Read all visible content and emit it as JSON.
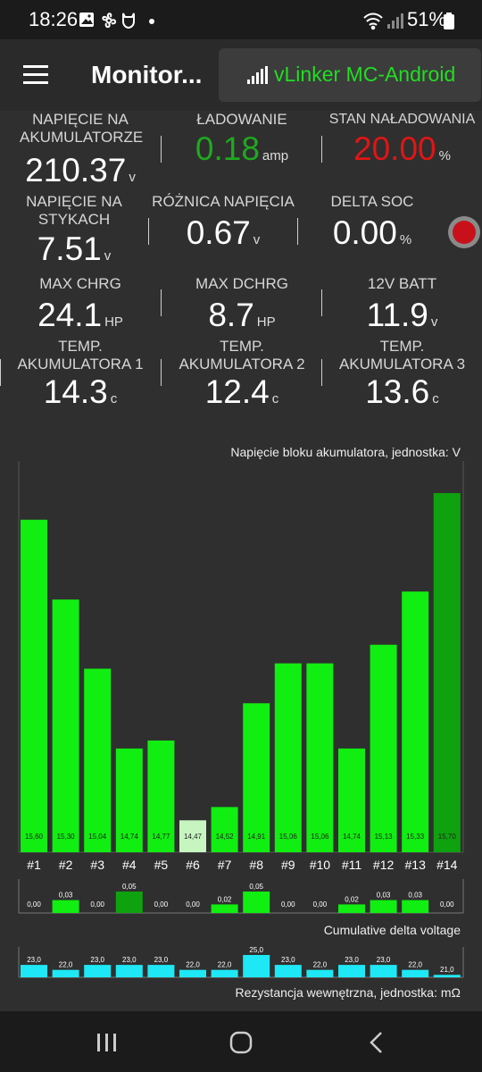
{
  "status_bar": {
    "time": "18:26",
    "battery": "51%",
    "icons": [
      "gallery-icon",
      "fan-icon",
      "mi-icon",
      "dot-icon",
      "wifi-icon",
      "signal-icon",
      "battery-icon"
    ]
  },
  "app_bar": {
    "title": "Monitor...",
    "device": "vLinker MC-Android",
    "accent": "#22dd22"
  },
  "metrics": [
    {
      "label": "NAPIĘCIE NA AKUMULATORZE",
      "value": "210.37",
      "unit": "v",
      "color": "#ffffff"
    },
    {
      "label": "ŁADOWANIE",
      "value": "0.18",
      "unit": "amp",
      "color": "#1fa81f"
    },
    {
      "label": "STAN NAŁADOWANIA",
      "value": "20.00",
      "unit": "%",
      "color": "#e01515"
    },
    {
      "label": "NAPIĘCIE NA STYKACH",
      "value": "7.51",
      "unit": "v",
      "color": "#ffffff"
    },
    {
      "label": "RÓŻNICA NAPIĘCIA",
      "value": "0.67",
      "unit": "v",
      "color": "#ffffff"
    },
    {
      "label": "DELTA SOC",
      "value": "0.00",
      "unit": "%",
      "color": "#ffffff"
    },
    {
      "label": "MAX CHRG",
      "value": "24.1",
      "unit": "HP",
      "color": "#ffffff"
    },
    {
      "label": "MAX DCHRG",
      "value": "8.7",
      "unit": "HP",
      "color": "#ffffff"
    },
    {
      "label": "12V BATT",
      "value": "11.9",
      "unit": "v",
      "color": "#ffffff"
    },
    {
      "label": "TEMP. AKUMULATORA 1",
      "value": "14.3",
      "unit": "c",
      "color": "#ffffff"
    },
    {
      "label": "TEMP. AKUMULATORA 2",
      "value": "12.4",
      "unit": "c",
      "color": "#ffffff"
    },
    {
      "label": "TEMP. AKUMULATORA 3",
      "value": "13.6",
      "unit": "c",
      "color": "#ffffff"
    }
  ],
  "chart_data": [
    {
      "type": "bar",
      "title": "Napięcie bloku akumulatora, jednostka: V",
      "categories": [
        "#1",
        "#2",
        "#3",
        "#4",
        "#5",
        "#6",
        "#7",
        "#8",
        "#9",
        "#10",
        "#11",
        "#12",
        "#13",
        "#14"
      ],
      "values": [
        15.6,
        15.3,
        15.04,
        14.74,
        14.77,
        14.47,
        14.52,
        14.91,
        15.06,
        15.06,
        14.74,
        15.13,
        15.33,
        15.7
      ],
      "value_labels": [
        "15,60",
        "15,30",
        "15,04",
        "14,74",
        "14,77",
        "14,47",
        "14,52",
        "14,91",
        "15,06",
        "15,06",
        "14,74",
        "15,13",
        "15,33",
        "15,70"
      ],
      "ylim": [
        14.35,
        15.7
      ],
      "colors": {
        "normal": "#11ee11",
        "min": "#c6f5c0",
        "max": "#0ea20e"
      },
      "min_index": 5,
      "max_index": 13
    },
    {
      "type": "bar",
      "title": "Cumulative delta voltage",
      "values": [
        0.0,
        0.03,
        0.0,
        0.05,
        0.0,
        0.0,
        0.02,
        0.05,
        0.0,
        0.0,
        0.02,
        0.03,
        0.03,
        0.0
      ],
      "value_labels": [
        "0,00",
        "0,03",
        "0,00",
        "0,05",
        "0,00",
        "0,00",
        "0,02",
        "0,05",
        "0,00",
        "0,00",
        "0,02",
        "0,03",
        "0,03",
        "0,00"
      ],
      "ylim": [
        0,
        0.05
      ],
      "colors": {
        "normal": "#11ee11",
        "highlight": "#0ea20e"
      },
      "highlight_index": 3
    },
    {
      "type": "bar",
      "title": "Rezystancja wewnętrzna, jednostka: mΩ",
      "values": [
        23.0,
        22.0,
        23.0,
        23.0,
        23.0,
        22.0,
        22.0,
        25.0,
        23.0,
        22.0,
        23.0,
        23.0,
        22.0,
        21.0
      ],
      "value_labels": [
        "23,0",
        "22,0",
        "23,0",
        "23,0",
        "23,0",
        "22,0",
        "22,0",
        "25,0",
        "23,0",
        "22,0",
        "23,0",
        "23,0",
        "22,0",
        "21,0"
      ],
      "ylim": [
        20.5,
        25.0
      ],
      "colors": {
        "normal": "#1ee8f5"
      }
    }
  ],
  "nav_bar": {
    "buttons": [
      "recent-apps-icon",
      "home-icon",
      "back-icon"
    ]
  }
}
